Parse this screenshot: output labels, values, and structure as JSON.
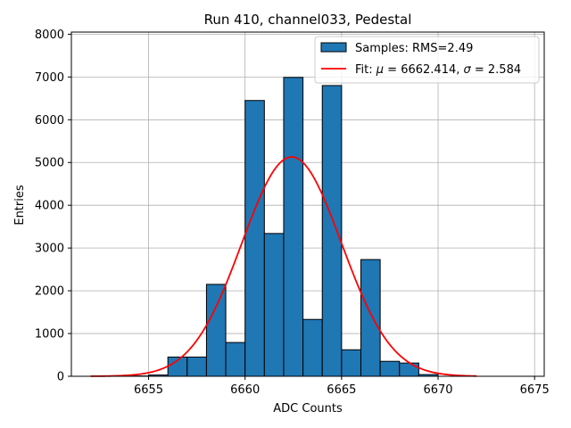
{
  "chart_data": {
    "type": "bar",
    "title": "Run 410, channel033, Pedestal",
    "xlabel": "ADC Counts",
    "ylabel": "Entries",
    "xlim": [
      6651,
      6675.5
    ],
    "ylim": [
      0,
      8050
    ],
    "xticks": [
      6655,
      6660,
      6665,
      6670,
      6675
    ],
    "yticks": [
      0,
      1000,
      2000,
      3000,
      4000,
      5000,
      6000,
      7000,
      8000
    ],
    "grid": true,
    "legend_placement": "top-right",
    "histogram": {
      "name": "Samples: RMS=2.49",
      "color": "#1f77b4",
      "edge_color": "#000000",
      "bins": [
        {
          "x0": 6652,
          "x1": 6653,
          "value": 0
        },
        {
          "x0": 6653,
          "x1": 6654,
          "value": 0
        },
        {
          "x0": 6654,
          "x1": 6655,
          "value": 8
        },
        {
          "x0": 6655,
          "x1": 6656,
          "value": 30
        },
        {
          "x0": 6656,
          "x1": 6657,
          "value": 450
        },
        {
          "x0": 6657,
          "x1": 6658,
          "value": 450
        },
        {
          "x0": 6658,
          "x1": 6659,
          "value": 2150
        },
        {
          "x0": 6659,
          "x1": 6660,
          "value": 790
        },
        {
          "x0": 6660,
          "x1": 6661,
          "value": 6450
        },
        {
          "x0": 6661,
          "x1": 6662,
          "value": 3340
        },
        {
          "x0": 6662,
          "x1": 6663,
          "value": 6990
        },
        {
          "x0": 6663,
          "x1": 6664,
          "value": 1330
        },
        {
          "x0": 6664,
          "x1": 6665,
          "value": 6800
        },
        {
          "x0": 6665,
          "x1": 6666,
          "value": 620
        },
        {
          "x0": 6666,
          "x1": 6667,
          "value": 2730
        },
        {
          "x0": 6667,
          "x1": 6668,
          "value": 350
        },
        {
          "x0": 6668,
          "x1": 6669,
          "value": 310
        },
        {
          "x0": 6669,
          "x1": 6670,
          "value": 40
        },
        {
          "x0": 6670,
          "x1": 6671,
          "value": 0
        },
        {
          "x0": 6671,
          "x1": 6672,
          "value": 0
        },
        {
          "x0": 6672,
          "x1": 6673,
          "value": 0
        },
        {
          "x0": 6673,
          "x1": 6674,
          "value": 0
        }
      ]
    },
    "fit": {
      "type": "gaussian",
      "name_prefix": "Fit: ",
      "mu_symbol": "μ",
      "mu_text": " = 6662.414, ",
      "sigma_symbol": "σ",
      "sigma_text": " = 2.584",
      "mu": 6662.414,
      "sigma": 2.584,
      "amplitude": 5130,
      "x_range": [
        6652,
        6672
      ],
      "color": "#ff0000"
    }
  }
}
